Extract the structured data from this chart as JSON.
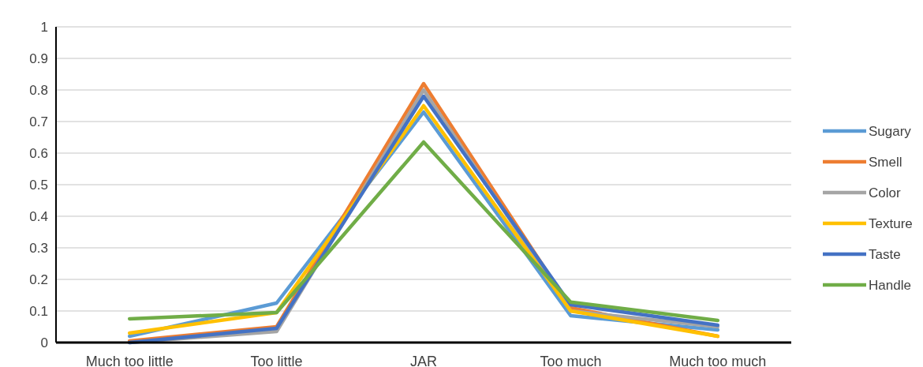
{
  "chart_data": {
    "type": "line",
    "categories": [
      "Much too little",
      "Too little",
      "JAR",
      "Too much",
      "Much too much"
    ],
    "series": [
      {
        "name": "Sugary",
        "color": "#5b9bd5",
        "values": [
          0.02,
          0.125,
          0.73,
          0.085,
          0.04
        ]
      },
      {
        "name": "Smell",
        "color": "#ed7d31",
        "values": [
          0.005,
          0.05,
          0.82,
          0.11,
          0.02
        ]
      },
      {
        "name": "Color",
        "color": "#a5a5a5",
        "values": [
          0,
          0.035,
          0.8,
          0.1,
          0.05
        ]
      },
      {
        "name": "Texture",
        "color": "#ffc000",
        "values": [
          0.03,
          0.095,
          0.75,
          0.1,
          0.02
        ]
      },
      {
        "name": "Taste",
        "color": "#4472c4",
        "values": [
          0,
          0.045,
          0.78,
          0.12,
          0.055
        ]
      },
      {
        "name": "Handle",
        "color": "#70ad47",
        "values": [
          0.075,
          0.095,
          0.635,
          0.128,
          0.07
        ]
      }
    ],
    "ylim": [
      0,
      1
    ],
    "yticks": [
      0,
      0.1,
      0.2,
      0.3,
      0.4,
      0.5,
      0.6,
      0.7,
      0.8,
      0.9,
      1
    ],
    "grid": "y",
    "legend": "right",
    "marker": "none",
    "line_style": "solid"
  }
}
